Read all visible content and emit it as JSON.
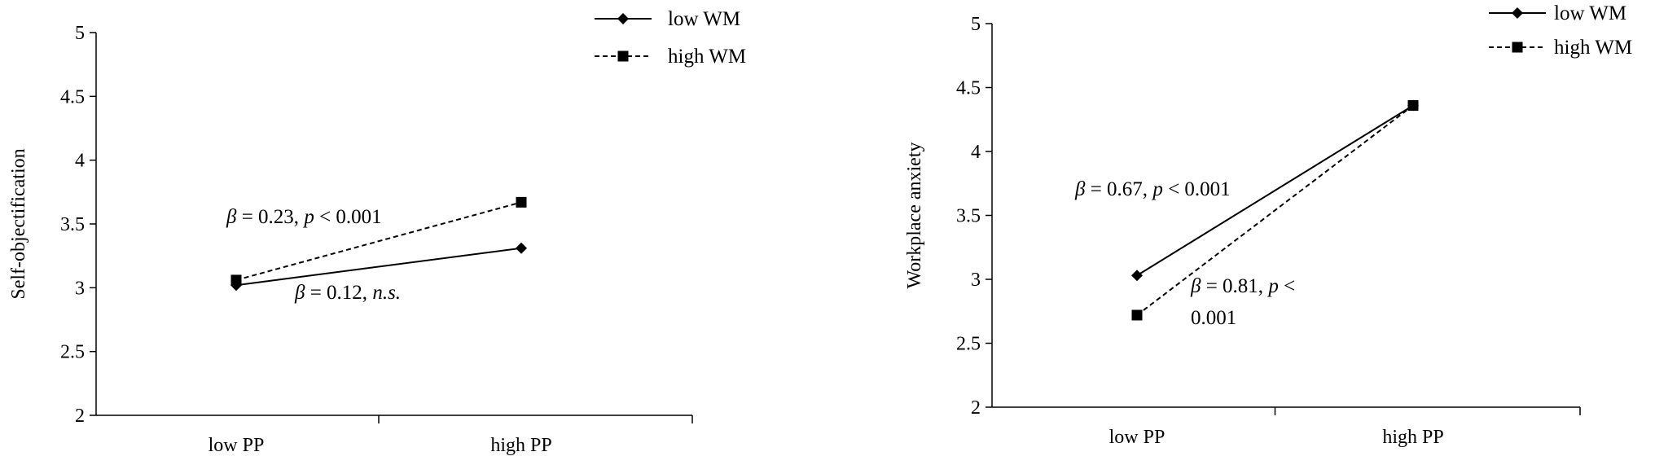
{
  "chart_data": [
    {
      "type": "line",
      "ylabel": "Self-objectification",
      "xlabel": "",
      "ylim": [
        2,
        5
      ],
      "yticks": [
        "2",
        "2.5",
        "3",
        "3.5",
        "4",
        "4.5",
        "5"
      ],
      "yticks_values": [
        2,
        2.5,
        3,
        3.5,
        4,
        4.5,
        5
      ],
      "categories": [
        "low PP",
        "high PP"
      ],
      "series": [
        {
          "name": "low WM",
          "values": [
            3.02,
            3.31
          ],
          "marker": "diamond",
          "line": "solid"
        },
        {
          "name": "high WM",
          "values": [
            3.06,
            3.67
          ],
          "marker": "square",
          "line": "dashed"
        }
      ],
      "legend_placement": "top-right",
      "grid": false,
      "annotations": [
        {
          "beta": "β",
          "eq": " = 0.23, ",
          "p": "p",
          "rest": " < 0.001"
        },
        {
          "beta": "β",
          "eq": " = 0.12, ",
          "p": "n.s.",
          "rest": ""
        }
      ]
    },
    {
      "type": "line",
      "ylabel": "Workplace anxiety",
      "xlabel": "",
      "ylim": [
        2,
        5
      ],
      "yticks": [
        "2",
        "2.5",
        "3",
        "3.5",
        "4",
        "4.5",
        "5"
      ],
      "yticks_values": [
        2,
        2.5,
        3,
        3.5,
        4,
        4.5,
        5
      ],
      "categories": [
        "low PP",
        "high PP"
      ],
      "series": [
        {
          "name": "low WM",
          "values": [
            3.03,
            4.36
          ],
          "marker": "diamond",
          "line": "solid"
        },
        {
          "name": "high WM",
          "values": [
            2.72,
            4.36
          ],
          "marker": "square",
          "line": "dashed"
        }
      ],
      "legend_placement": "top-right",
      "grid": false,
      "annotations": [
        {
          "beta": "β",
          "eq": " = 0.67, ",
          "p": "p",
          "rest": " < 0.001"
        },
        {
          "beta": "β",
          "eq": " = 0.81, ",
          "p": "p",
          "rest": " <"
        },
        {
          "beta": "",
          "eq": "0.001",
          "p": "",
          "rest": ""
        }
      ]
    }
  ]
}
